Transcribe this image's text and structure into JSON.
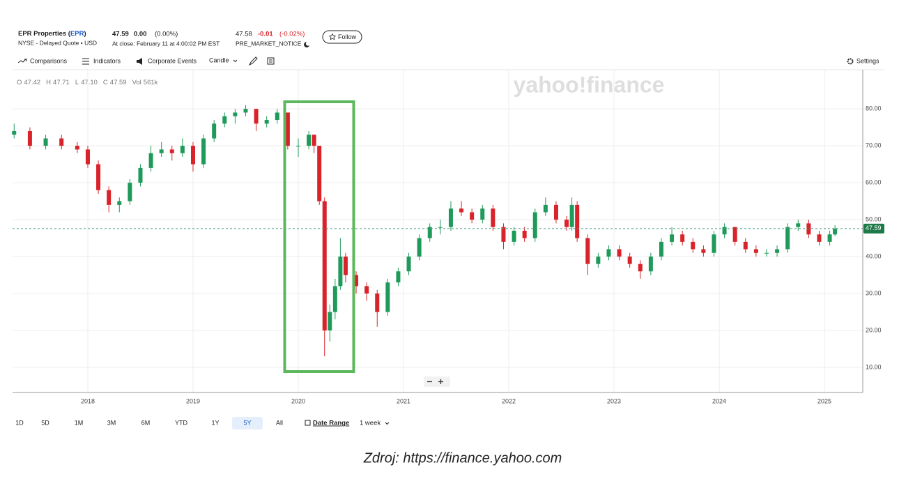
{
  "header": {
    "name_parts": [
      "EPR Properties (",
      "EPR",
      ")"
    ],
    "exchange": "NYSE - Delayed Quote • USD",
    "price": "47.59",
    "change": "0.00",
    "change_pct": "(0.00%)",
    "close_note": "At close: February 11 at 4:00:02 PM EST",
    "pre_price": "47.58",
    "pre_change": "-0.01",
    "pre_change_pct": "(-0.02%)",
    "pre_note": "PRE_MARKET_NOTICE",
    "follow": "Follow"
  },
  "toolbar": {
    "comparisons": "Comparisons",
    "indicators": "Indicators",
    "events": "Corporate Events",
    "chart_type": "Candle",
    "settings": "Settings"
  },
  "ohlc": [
    {
      "label": "O",
      "value": "47.42"
    },
    {
      "label": "H",
      "value": "47.71"
    },
    {
      "label": "L",
      "value": "47.10"
    },
    {
      "label": "C",
      "value": "47.59"
    },
    {
      "label": "Vol",
      "value": "561k"
    }
  ],
  "watermark": "yahoo!finance",
  "chart_data": {
    "type": "candlestick",
    "up_color": "#1f9a5a",
    "down_color": "#d8232a",
    "grid": true,
    "x": [
      2017.3,
      2017.45,
      2017.6,
      2017.75,
      2017.9,
      2018.0,
      2018.1,
      2018.2,
      2018.3,
      2018.4,
      2018.5,
      2018.6,
      2018.7,
      2018.8,
      2018.9,
      2019.0,
      2019.1,
      2019.2,
      2019.3,
      2019.4,
      2019.5,
      2019.6,
      2019.7,
      2019.8,
      2019.9,
      2020.0,
      2020.1,
      2020.15,
      2020.2,
      2020.25,
      2020.3,
      2020.35,
      2020.4,
      2020.45,
      2020.55,
      2020.65,
      2020.75,
      2020.85,
      2020.95,
      2021.05,
      2021.15,
      2021.25,
      2021.35,
      2021.45,
      2021.55,
      2021.65,
      2021.75,
      2021.85,
      2021.95,
      2022.05,
      2022.15,
      2022.25,
      2022.35,
      2022.45,
      2022.55,
      2022.6,
      2022.65,
      2022.75,
      2022.85,
      2022.95,
      2023.05,
      2023.15,
      2023.25,
      2023.35,
      2023.45,
      2023.55,
      2023.65,
      2023.75,
      2023.85,
      2023.95,
      2024.05,
      2024.15,
      2024.25,
      2024.35,
      2024.45,
      2024.55,
      2024.65,
      2024.75,
      2024.85,
      2024.95,
      2025.05,
      2025.1
    ],
    "open": [
      73,
      74,
      70,
      72,
      70,
      69,
      65,
      58,
      54,
      55,
      60,
      64,
      68,
      69,
      68,
      70,
      65,
      72,
      76,
      78,
      79,
      80,
      76,
      77,
      79,
      70,
      70,
      73,
      70,
      55,
      20,
      25,
      32,
      40,
      35,
      32,
      30,
      25,
      33,
      36,
      40,
      45,
      48,
      48,
      53,
      52,
      50,
      53,
      48,
      44,
      47,
      45,
      52,
      54,
      50,
      48,
      54,
      45,
      38,
      40,
      42,
      40,
      38,
      36,
      40,
      44,
      46,
      44,
      42,
      41,
      46,
      48,
      44,
      42,
      41,
      41,
      42,
      48,
      49,
      46,
      44,
      46
    ],
    "high": [
      76,
      75,
      73,
      73,
      71,
      70,
      66,
      59,
      56,
      61,
      65,
      70,
      71,
      70,
      72,
      71,
      73,
      77,
      79,
      80,
      81,
      80,
      78,
      80,
      79,
      72,
      74,
      73,
      70,
      56,
      27,
      34,
      45,
      41,
      36,
      33,
      31,
      34,
      37,
      41,
      46,
      49,
      50,
      55,
      55,
      53,
      54,
      54,
      49,
      48,
      48,
      53,
      56,
      55,
      51,
      56,
      55,
      46,
      41,
      43,
      43,
      41,
      39,
      41,
      45,
      48,
      47,
      45,
      43,
      47,
      49,
      48,
      45,
      43,
      42,
      43,
      49,
      50,
      50,
      47,
      47,
      48.5
    ],
    "low": [
      72,
      69,
      69,
      69,
      68,
      64,
      57,
      52,
      52,
      54,
      59,
      63,
      67,
      66,
      67,
      63,
      64,
      71,
      75,
      76,
      78,
      74,
      75,
      76,
      69,
      67,
      69,
      68,
      54,
      13,
      17,
      23,
      31,
      33,
      30,
      28,
      21,
      24,
      32,
      35,
      39,
      44,
      46,
      47,
      51,
      49,
      49,
      47,
      42,
      43,
      44,
      44,
      51,
      49,
      47,
      47,
      44,
      35,
      37,
      39,
      39,
      37,
      34,
      35,
      39,
      43,
      43,
      41,
      40,
      40,
      45,
      43,
      41,
      40,
      40,
      40,
      41,
      47,
      45,
      43,
      43,
      45.5
    ],
    "close": [
      74,
      70,
      72,
      70,
      69,
      65,
      58,
      54,
      55,
      60,
      64,
      68,
      69,
      68,
      70,
      65,
      72,
      76,
      78,
      79,
      80,
      76,
      77,
      79,
      70,
      70,
      73,
      70,
      55,
      20,
      25,
      32,
      40,
      35,
      32,
      30,
      25,
      33,
      36,
      40,
      45,
      48,
      48,
      53,
      52,
      50,
      53,
      48,
      44,
      47,
      45,
      52,
      54,
      50,
      48,
      54,
      45,
      38,
      40,
      42,
      40,
      38,
      36,
      40,
      44,
      46,
      44,
      42,
      41,
      46,
      48,
      44,
      42,
      41,
      41,
      42,
      48,
      49,
      46,
      44,
      46,
      47.59
    ],
    "last_price": 47.59,
    "xlim": [
      2017.285,
      2025.364
    ],
    "xticks": [
      2018,
      2019,
      2020,
      2021,
      2022,
      2023,
      2024,
      2025
    ],
    "ylim": [
      3.2,
      90.6
    ],
    "yticks": [
      {
        "value": 10,
        "label": "10.00"
      },
      {
        "value": 20,
        "label": "20.00"
      },
      {
        "value": 30,
        "label": "30.00"
      },
      {
        "value": 40,
        "label": "40.00"
      },
      {
        "value": 50,
        "label": "50.00"
      },
      {
        "value": 60,
        "label": "60.00"
      },
      {
        "value": 70,
        "label": "70.00"
      },
      {
        "value": 80,
        "label": "80.00"
      }
    ]
  },
  "ranges": [
    "1D",
    "5D",
    "1M",
    "3M",
    "6M",
    "YTD",
    "1Y",
    "5Y",
    "All"
  ],
  "selected_range": "5Y",
  "date_range": "Date Range",
  "interval": "1 week",
  "caption": "Zdroj: https://finance.yahoo.com"
}
